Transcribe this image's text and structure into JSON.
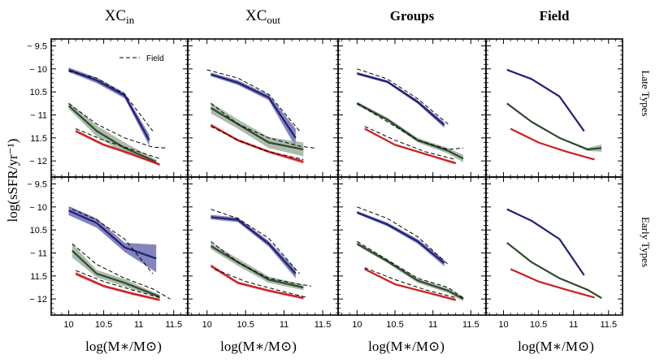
{
  "figure": {
    "column_titles": [
      {
        "main": "XC",
        "sub": "in",
        "bold": false
      },
      {
        "main": "XC",
        "sub": "out",
        "bold": false
      },
      {
        "main": "Groups",
        "sub": "",
        "bold": true
      },
      {
        "main": "Field",
        "sub": "",
        "bold": true
      }
    ],
    "row_labels": [
      "Late Types",
      "Early Types"
    ],
    "ylabel": "log(sSFR/yr⁻¹)",
    "xlabel": "log(M∗/M⊙)",
    "legend_label": "Field",
    "colors": {
      "blue": "#1f1f7a",
      "green": "#2e4a2e",
      "red": "#cc1f1f",
      "blue_band": "#5a5aa8",
      "green_band": "#8fa68f",
      "red_band": "#e07a7a"
    }
  },
  "chart_data": {
    "type": "line",
    "xlim": [
      9.75,
      11.7
    ],
    "ylim": [
      -12.35,
      -9.35
    ],
    "xticks": [
      10,
      10.5,
      11,
      11.5
    ],
    "xtick_labels": [
      "10",
      "10.5",
      "11",
      "11.5"
    ],
    "yticks": [
      -9.5,
      -10,
      -10.5,
      -11,
      -11.5,
      -12
    ],
    "ytick_labels": [
      "− 9.5",
      "− 10",
      "10.5",
      "− 11",
      "11.5",
      "− 12"
    ],
    "panels": [
      {
        "row": "Late Types",
        "col": "XCin",
        "series": [
          {
            "name": "blue",
            "x": [
              10.0,
              10.4,
              10.8,
              11.15
            ],
            "y": [
              -10.02,
              -10.25,
              -10.58,
              -11.55
            ],
            "err": [
              0.05,
              0.06,
              0.06,
              0.12
            ]
          },
          {
            "name": "green",
            "x": [
              10.0,
              10.4,
              10.8,
              11.25
            ],
            "y": [
              -10.8,
              -11.35,
              -11.72,
              -12.02
            ],
            "err": [
              0.07,
              0.12,
              0.12,
              0.05
            ]
          },
          {
            "name": "red",
            "x": [
              10.1,
              10.5,
              10.9,
              11.3
            ],
            "y": [
              -11.35,
              -11.65,
              -11.85,
              -12.08
            ],
            "err": [
              0.03,
              0.03,
              0.03,
              0.03
            ]
          }
        ],
        "field_dashed": [
          {
            "x": [
              10.0,
              10.4,
              10.8,
              11.2
            ],
            "y": [
              -10.05,
              -10.2,
              -10.55,
              -11.35
            ]
          },
          {
            "x": [
              10.0,
              10.4,
              10.8,
              11.2,
              11.4
            ],
            "y": [
              -10.75,
              -11.2,
              -11.5,
              -11.7,
              -11.72
            ]
          },
          {
            "x": [
              10.1,
              10.5,
              10.9,
              11.3
            ],
            "y": [
              -11.3,
              -11.55,
              -11.75,
              -11.95
            ]
          }
        ]
      },
      {
        "row": "Late Types",
        "col": "XCout",
        "series": [
          {
            "name": "blue",
            "x": [
              10.05,
              10.4,
              10.8,
              11.15
            ],
            "y": [
              -10.12,
              -10.3,
              -10.62,
              -11.5
            ],
            "err": [
              0.04,
              0.05,
              0.06,
              0.2
            ]
          },
          {
            "name": "green",
            "x": [
              10.05,
              10.4,
              10.8,
              11.25
            ],
            "y": [
              -10.85,
              -11.2,
              -11.6,
              -11.75
            ],
            "err": [
              0.12,
              0.1,
              0.12,
              0.15
            ]
          },
          {
            "name": "red",
            "x": [
              10.05,
              10.4,
              10.8,
              11.25
            ],
            "y": [
              -11.22,
              -11.55,
              -11.8,
              -12.02
            ],
            "err": [
              0.03,
              0.03,
              0.03,
              0.04
            ]
          }
        ],
        "field_dashed": [
          {
            "x": [
              10.0,
              10.4,
              10.8,
              11.2
            ],
            "y": [
              -10.02,
              -10.2,
              -10.55,
              -11.35
            ]
          },
          {
            "x": [
              10.05,
              10.4,
              10.8,
              11.2,
              11.4
            ],
            "y": [
              -10.75,
              -11.2,
              -11.5,
              -11.68,
              -11.72
            ]
          },
          {
            "x": [
              10.05,
              10.4,
              10.8,
              11.25
            ],
            "y": [
              -11.25,
              -11.55,
              -11.8,
              -11.97
            ]
          }
        ]
      },
      {
        "row": "Late Types",
        "col": "Groups",
        "series": [
          {
            "name": "blue",
            "x": [
              10.0,
              10.4,
              10.8,
              11.15
            ],
            "y": [
              -10.1,
              -10.28,
              -10.72,
              -11.22
            ],
            "err": [
              0.03,
              0.03,
              0.04,
              0.06
            ]
          },
          {
            "name": "green",
            "x": [
              10.0,
              10.4,
              10.8,
              11.2,
              11.4
            ],
            "y": [
              -10.75,
              -11.1,
              -11.55,
              -11.78,
              -11.95
            ],
            "err": [
              0.04,
              0.04,
              0.05,
              0.06,
              0.08
            ]
          },
          {
            "name": "red",
            "x": [
              10.1,
              10.5,
              10.9,
              11.3
            ],
            "y": [
              -11.3,
              -11.65,
              -11.85,
              -12.05
            ],
            "err": [
              0.02,
              0.02,
              0.02,
              0.03
            ]
          }
        ],
        "field_dashed": [
          {
            "x": [
              10.0,
              10.4,
              10.8,
              11.2
            ],
            "y": [
              -10.0,
              -10.22,
              -10.65,
              -11.2
            ]
          },
          {
            "x": [
              10.0,
              10.4,
              10.8,
              11.2,
              11.4
            ],
            "y": [
              -10.75,
              -11.15,
              -11.55,
              -11.75,
              -11.72
            ]
          },
          {
            "x": [
              10.1,
              10.5,
              10.9,
              11.3
            ],
            "y": [
              -11.25,
              -11.55,
              -11.8,
              -11.97
            ]
          }
        ]
      },
      {
        "row": "Late Types",
        "col": "Field",
        "series": [
          {
            "name": "blue",
            "x": [
              10.05,
              10.4,
              10.8,
              11.15
            ],
            "y": [
              -10.02,
              -10.22,
              -10.6,
              -11.35
            ],
            "err": [
              0.01,
              0.01,
              0.01,
              0.03
            ]
          },
          {
            "name": "green",
            "x": [
              10.05,
              10.4,
              10.8,
              11.2,
              11.4
            ],
            "y": [
              -10.75,
              -11.15,
              -11.5,
              -11.75,
              -11.72
            ],
            "err": [
              0.01,
              0.01,
              0.01,
              0.03,
              0.08
            ]
          },
          {
            "name": "red",
            "x": [
              10.1,
              10.5,
              10.9,
              11.3
            ],
            "y": [
              -11.3,
              -11.6,
              -11.8,
              -11.97
            ],
            "err": [
              0.01,
              0.01,
              0.01,
              0.01
            ]
          }
        ],
        "field_dashed": []
      },
      {
        "row": "Early Types",
        "col": "XCin",
        "series": [
          {
            "name": "blue",
            "x": [
              10.0,
              10.4,
              10.8,
              11.25
            ],
            "y": [
              -10.08,
              -10.35,
              -10.88,
              -11.12
            ],
            "err": [
              0.1,
              0.1,
              0.1,
              0.3
            ]
          },
          {
            "name": "green",
            "x": [
              10.05,
              10.4,
              10.8,
              11.3
            ],
            "y": [
              -10.95,
              -11.45,
              -11.65,
              -11.95
            ],
            "err": [
              0.15,
              0.08,
              0.08,
              0.04
            ]
          },
          {
            "name": "red",
            "x": [
              10.1,
              10.5,
              10.9,
              11.3
            ],
            "y": [
              -11.45,
              -11.72,
              -11.88,
              -12.02
            ],
            "err": [
              0.04,
              0.03,
              0.03,
              0.03
            ]
          }
        ],
        "field_dashed": [
          {
            "x": [
              10.05,
              10.4,
              10.8,
              11.2
            ],
            "y": [
              -10.05,
              -10.28,
              -10.7,
              -11.45
            ]
          },
          {
            "x": [
              10.05,
              10.4,
              10.8,
              11.2,
              11.45
            ],
            "y": [
              -10.8,
              -11.25,
              -11.55,
              -11.78,
              -12.0
            ]
          },
          {
            "x": [
              10.1,
              10.5,
              10.9,
              11.3
            ],
            "y": [
              -11.38,
              -11.62,
              -11.8,
              -11.97
            ]
          }
        ]
      },
      {
        "row": "Early Types",
        "col": "XCout",
        "series": [
          {
            "name": "blue",
            "x": [
              10.05,
              10.4,
              10.8,
              11.15
            ],
            "y": [
              -10.22,
              -10.28,
              -10.8,
              -11.45
            ],
            "err": [
              0.05,
              0.05,
              0.06,
              0.1
            ]
          },
          {
            "name": "green",
            "x": [
              10.05,
              10.4,
              10.8,
              11.25
            ],
            "y": [
              -10.85,
              -11.2,
              -11.58,
              -11.75
            ],
            "err": [
              0.07,
              0.08,
              0.07,
              0.06
            ]
          },
          {
            "name": "red",
            "x": [
              10.05,
              10.4,
              10.8,
              11.25
            ],
            "y": [
              -11.28,
              -11.65,
              -11.82,
              -11.98
            ],
            "err": [
              0.04,
              0.03,
              0.03,
              0.03
            ]
          }
        ],
        "field_dashed": [
          {
            "x": [
              10.05,
              10.4,
              10.8,
              11.2
            ],
            "y": [
              -10.05,
              -10.25,
              -10.68,
              -11.45
            ]
          },
          {
            "x": [
              10.05,
              10.4,
              10.8,
              11.2,
              11.35
            ],
            "y": [
              -10.75,
              -11.2,
              -11.55,
              -11.68,
              -11.72
            ]
          },
          {
            "x": [
              10.1,
              10.5,
              10.9,
              11.3
            ],
            "y": [
              -11.35,
              -11.62,
              -11.8,
              -11.97
            ]
          }
        ]
      },
      {
        "row": "Early Types",
        "col": "Groups",
        "series": [
          {
            "name": "blue",
            "x": [
              10.0,
              10.4,
              10.8,
              11.15
            ],
            "y": [
              -10.12,
              -10.38,
              -10.75,
              -11.22
            ],
            "err": [
              0.03,
              0.04,
              0.05,
              0.07
            ]
          },
          {
            "name": "green",
            "x": [
              10.0,
              10.4,
              10.8,
              11.2,
              11.4
            ],
            "y": [
              -10.8,
              -11.18,
              -11.6,
              -11.82,
              -12.0
            ],
            "err": [
              0.04,
              0.04,
              0.05,
              0.05,
              0.05
            ]
          },
          {
            "name": "red",
            "x": [
              10.1,
              10.5,
              10.9,
              11.3
            ],
            "y": [
              -11.35,
              -11.68,
              -11.85,
              -12.02
            ],
            "err": [
              0.02,
              0.02,
              0.02,
              0.03
            ]
          }
        ],
        "field_dashed": [
          {
            "x": [
              10.0,
              10.4,
              10.8,
              11.2
            ],
            "y": [
              -10.0,
              -10.25,
              -10.65,
              -11.25
            ]
          },
          {
            "x": [
              10.0,
              10.4,
              10.8,
              11.2,
              11.4
            ],
            "y": [
              -10.75,
              -11.15,
              -11.55,
              -11.75,
              -11.98
            ]
          },
          {
            "x": [
              10.1,
              10.5,
              10.9,
              11.3
            ],
            "y": [
              -11.32,
              -11.58,
              -11.8,
              -11.97
            ]
          }
        ]
      },
      {
        "row": "Early Types",
        "col": "Field",
        "series": [
          {
            "name": "blue",
            "x": [
              10.05,
              10.4,
              10.8,
              11.15
            ],
            "y": [
              -10.05,
              -10.3,
              -10.7,
              -11.48
            ],
            "err": [
              0.01,
              0.01,
              0.01,
              0.03
            ]
          },
          {
            "name": "green",
            "x": [
              10.05,
              10.4,
              10.8,
              11.2,
              11.4
            ],
            "y": [
              -10.78,
              -11.2,
              -11.55,
              -11.8,
              -11.98
            ],
            "err": [
              0.01,
              0.01,
              0.01,
              0.02,
              0.02
            ]
          },
          {
            "name": "red",
            "x": [
              10.1,
              10.5,
              10.9,
              11.3
            ],
            "y": [
              -11.35,
              -11.62,
              -11.8,
              -11.97
            ],
            "err": [
              0.01,
              0.01,
              0.01,
              0.01
            ]
          }
        ],
        "field_dashed": []
      }
    ]
  }
}
